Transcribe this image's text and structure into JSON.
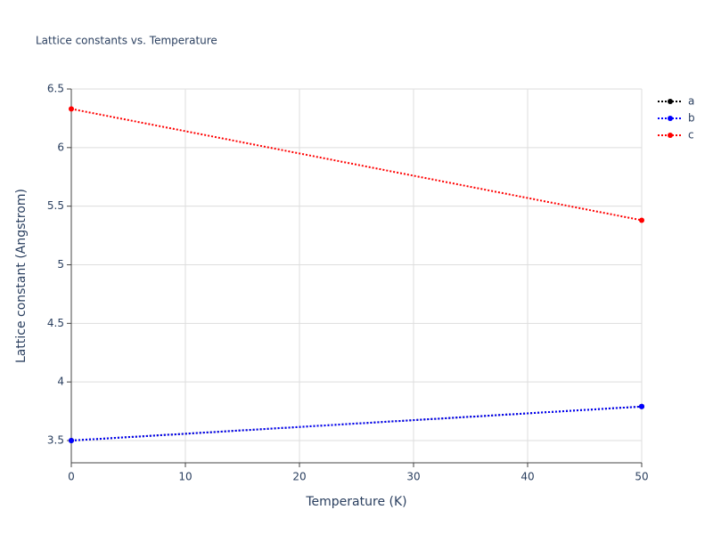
{
  "chart_data": {
    "type": "line",
    "title": "Lattice constants vs. Temperature",
    "x_label": "Temperature (K)",
    "y_label": "Lattice constant (Angstrom)",
    "x": [
      0,
      50
    ],
    "series": [
      {
        "name": "a",
        "color": "#000000",
        "values": [
          3.5,
          3.79
        ]
      },
      {
        "name": "b",
        "color": "#0000ff",
        "values": [
          3.5,
          3.79
        ]
      },
      {
        "name": "c",
        "color": "#ff0000",
        "values": [
          6.33,
          5.38
        ]
      }
    ],
    "xlim": [
      0,
      50
    ],
    "xticks": [
      0,
      10,
      20,
      30,
      40,
      50
    ],
    "ylim": [
      3.31,
      6.5
    ],
    "yticks": [
      3.5,
      4,
      4.5,
      5,
      5.5,
      6,
      6.5
    ],
    "grid": true,
    "legend": "top-right"
  }
}
